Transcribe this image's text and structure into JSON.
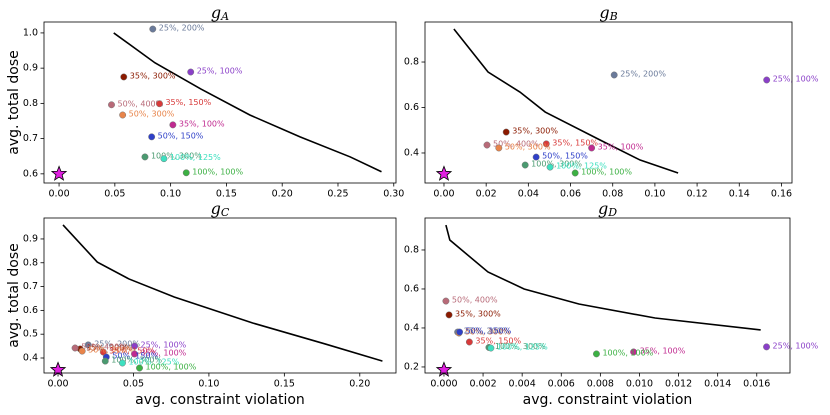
{
  "chart_data": [
    {
      "type": "scatter",
      "title": "g",
      "title_subscript": "A",
      "ylabel": "avg. total dose",
      "xlim": [
        -0.0135,
        0.302
      ],
      "ylim": [
        0.574,
        1.031
      ],
      "xticks": [
        {
          "value": 0,
          "label": "0.00"
        },
        0.05,
        {
          "value": 0.1,
          "label": "0.10"
        },
        0.15,
        {
          "value": 0.2,
          "label": "0.20"
        },
        0.25,
        {
          "value": 0.3,
          "label": "0.30"
        }
      ],
      "yticks": [
        0.6,
        0.7,
        0.8,
        0.9,
        {
          "value": 1.0,
          "label": "1.0"
        }
      ],
      "frontier": {
        "color": "#000000",
        "x": [
          0.049,
          0.086,
          0.127,
          0.171,
          0.216,
          0.261,
          0.289
        ],
        "y": [
          1.0,
          0.915,
          0.841,
          0.767,
          0.705,
          0.648,
          0.606
        ]
      },
      "star": {
        "color": "#e020e0",
        "x": 0,
        "y": 0.6
      },
      "points": [
        {
          "label": "25%, 200%",
          "color": "#6a7a9a",
          "x": 0.084,
          "y": 1.011
        },
        {
          "label": "35%, 300%",
          "color": "#8b1a00",
          "x": 0.058,
          "y": 0.875
        },
        {
          "label": "25%, 100%",
          "color": "#8a3fc8",
          "x": 0.118,
          "y": 0.889
        },
        {
          "label": "50%, 400%",
          "color": "#b86a78",
          "x": 0.047,
          "y": 0.796
        },
        {
          "label": "35%, 150%",
          "color": "#d83a3a",
          "x": 0.09,
          "y": 0.799
        },
        {
          "label": "50%, 300%",
          "color": "#e8844a",
          "x": 0.057,
          "y": 0.767
        },
        {
          "label": "35%, 100%",
          "color": "#c02a90",
          "x": 0.102,
          "y": 0.739
        },
        {
          "label": "50%, 150%",
          "color": "#2f40c8",
          "x": 0.083,
          "y": 0.705
        },
        {
          "label": "100%, 300%",
          "color": "#4a9a70",
          "x": 0.077,
          "y": 0.648
        },
        {
          "label": "100%, 125%",
          "color": "#3ee0c0",
          "x": 0.094,
          "y": 0.643
        },
        {
          "label": "100%, 100%",
          "color": "#3cb043",
          "x": 0.114,
          "y": 0.603
        }
      ]
    },
    {
      "type": "scatter",
      "title": "g",
      "title_subscript": "B",
      "xlim": [
        -0.009,
        0.165
      ],
      "ylim": [
        0.268,
        0.976
      ],
      "xticks": [
        {
          "value": 0,
          "label": "0.00"
        },
        0.02,
        0.04,
        0.06,
        0.08,
        {
          "value": 0.1,
          "label": "0.10"
        },
        0.12,
        0.14,
        0.16
      ],
      "yticks": [
        0.4,
        0.6,
        0.8
      ],
      "frontier": {
        "color": "#000000",
        "x": [
          0.0047,
          0.0209,
          0.036,
          0.048,
          0.074,
          0.093,
          0.111
        ],
        "y": [
          0.945,
          0.756,
          0.668,
          0.58,
          0.457,
          0.369,
          0.312
        ]
      },
      "star": {
        "color": "#e020e0",
        "x": 0,
        "y": 0.308
      },
      "points": [
        {
          "label": "25%, 200%",
          "color": "#6a7a9a",
          "x": 0.0807,
          "y": 0.743
        },
        {
          "label": "35%, 300%",
          "color": "#8b1a00",
          "x": 0.0295,
          "y": 0.492
        },
        {
          "label": "25%, 100%",
          "color": "#8a3fc8",
          "x": 0.153,
          "y": 0.721
        },
        {
          "label": "50%, 400%",
          "color": "#b86a78",
          "x": 0.0204,
          "y": 0.435
        },
        {
          "label": "35%, 150%",
          "color": "#d83a3a",
          "x": 0.0485,
          "y": 0.44
        },
        {
          "label": "50%, 300%",
          "color": "#e8844a",
          "x": 0.026,
          "y": 0.422
        },
        {
          "label": "35%, 100%",
          "color": "#c02a90",
          "x": 0.07,
          "y": 0.422
        },
        {
          "label": "50%, 150%",
          "color": "#2f40c8",
          "x": 0.0437,
          "y": 0.382
        },
        {
          "label": "100%, 300%",
          "color": "#4a9a70",
          "x": 0.0385,
          "y": 0.347
        },
        {
          "label": "100%, 125%",
          "color": "#3ee0c0",
          "x": 0.0503,
          "y": 0.338
        },
        {
          "label": "100%, 100%",
          "color": "#3cb043",
          "x": 0.0622,
          "y": 0.312
        }
      ]
    },
    {
      "type": "scatter",
      "title": "g",
      "title_subscript": "C",
      "ylabel": "avg. total dose",
      "xlabel": "avg. constraint violation",
      "xlim": [
        -0.0093,
        0.224
      ],
      "ylim": [
        0.337,
        0.988
      ],
      "xticks": [
        {
          "value": 0,
          "label": "0.00"
        },
        0.05,
        {
          "value": 0.1,
          "label": "0.10"
        },
        0.15,
        {
          "value": 0.2,
          "label": "0.20"
        }
      ],
      "yticks": [
        0.4,
        0.5,
        0.6,
        0.7,
        0.8,
        0.9
      ],
      "frontier": {
        "color": "#000000",
        "x": [
          0.0033,
          0.026,
          0.047,
          0.077,
          0.129,
          0.177,
          0.215
        ],
        "y": [
          0.959,
          0.803,
          0.732,
          0.656,
          0.547,
          0.459,
          0.387
        ]
      },
      "star": {
        "color": "#e020e0",
        "x": 0,
        "y": 0.35
      },
      "points": [
        {
          "label": "25%, 200%",
          "color": "#6a7a9a",
          "x": 0.02,
          "y": 0.455
        },
        {
          "label": "35%, 300%",
          "color": "#8b1a00",
          "x": 0.0147,
          "y": 0.438
        },
        {
          "label": "25%, 100%",
          "color": "#8a3fc8",
          "x": 0.0507,
          "y": 0.45
        },
        {
          "label": "50%, 400%",
          "color": "#b86a78",
          "x": 0.0113,
          "y": 0.442
        },
        {
          "label": "35%, 150%",
          "color": "#d83a3a",
          "x": 0.03,
          "y": 0.425
        },
        {
          "label": "50%, 300%",
          "color": "#e8844a",
          "x": 0.016,
          "y": 0.429
        },
        {
          "label": "35%, 100%",
          "color": "#c02a90",
          "x": 0.0507,
          "y": 0.417
        },
        {
          "label": "50%, 150%",
          "color": "#2f40c8",
          "x": 0.032,
          "y": 0.404
        },
        {
          "label": "100%, 300%",
          "color": "#4a9a70",
          "x": 0.0313,
          "y": 0.387
        },
        {
          "label": "100%, 125%",
          "color": "#3ee0c0",
          "x": 0.0427,
          "y": 0.379
        },
        {
          "label": "100%, 100%",
          "color": "#3cb043",
          "x": 0.054,
          "y": 0.358
        }
      ]
    },
    {
      "type": "scatter",
      "title": "g",
      "title_subscript": "D",
      "xlabel": "avg. constraint violation",
      "xlim": [
        -0.00097,
        0.0177
      ],
      "ylim": [
        0.169,
        0.964
      ],
      "xticks": [
        {
          "value": 0,
          "label": "0.000"
        },
        0.002,
        0.004,
        0.006,
        0.008,
        {
          "value": 0.01,
          "label": "0.010"
        },
        0.012,
        0.014,
        0.016
      ],
      "yticks": [
        0.2,
        0.4,
        0.6,
        0.8
      ],
      "frontier": {
        "color": "#000000",
        "x": [
          0.0001,
          0.0003,
          0.00225,
          0.0041,
          0.0069,
          0.0108,
          0.0162
        ],
        "y": [
          0.928,
          0.851,
          0.687,
          0.6,
          0.523,
          0.451,
          0.39
        ]
      },
      "star": {
        "color": "#e020e0",
        "x": 0,
        "y": 0.185
      },
      "points": [
        {
          "label": "25%, 200%",
          "color": "#6a7a9a",
          "x": 0.0007,
          "y": 0.379
        },
        {
          "label": "35%, 300%",
          "color": "#8b1a00",
          "x": 0.00026,
          "y": 0.467
        },
        {
          "label": "25%, 100%",
          "color": "#8a3fc8",
          "x": 0.0165,
          "y": 0.303
        },
        {
          "label": "50%, 400%",
          "color": "#b86a78",
          "x": 0.0001,
          "y": 0.538
        },
        {
          "label": "35%, 150%",
          "color": "#d83a3a",
          "x": 0.0013,
          "y": 0.328
        },
        {
          "label": "50%, 300%",
          "color": "#e8844a",
          "x": 0.00077,
          "y": 0.374
        },
        {
          "label": "35%, 100%",
          "color": "#c02a90",
          "x": 0.0097,
          "y": 0.277
        },
        {
          "label": "50%, 150%",
          "color": "#2f40c8",
          "x": 0.0008,
          "y": 0.379
        },
        {
          "label": "100%, 300%",
          "color": "#4a9a70",
          "x": 0.0023,
          "y": 0.3
        },
        {
          "label": "100%, 125%",
          "color": "#3ee0c0",
          "x": 0.0024,
          "y": 0.297
        },
        {
          "label": "100%, 100%",
          "color": "#3cb043",
          "x": 0.0078,
          "y": 0.267
        }
      ]
    }
  ]
}
